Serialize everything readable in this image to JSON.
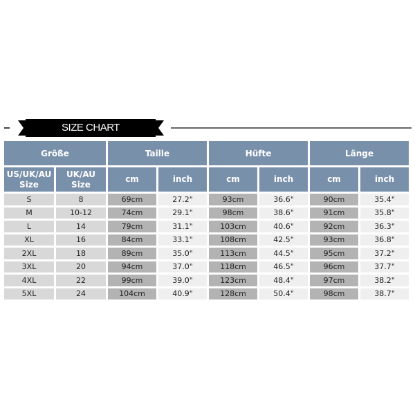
{
  "title": "SIZE CHART",
  "groups": [
    "Größe",
    "Taille",
    "Hüfte",
    "Länge"
  ],
  "subheaders": [
    "US/UK/AU Size",
    "UK/AU Size",
    "cm",
    "inch",
    "cm",
    "inch",
    "cm",
    "inch"
  ],
  "rows": [
    [
      "S",
      "8",
      "69cm",
      "27.2\"",
      "93cm",
      "36.6\"",
      "90cm",
      "35.4\""
    ],
    [
      "M",
      "10-12",
      "74cm",
      "29.1\"",
      "98cm",
      "38.6\"",
      "91cm",
      "35.8\""
    ],
    [
      "L",
      "14",
      "79cm",
      "31.1\"",
      "103cm",
      "40.6\"",
      "92cm",
      "36.3\""
    ],
    [
      "XL",
      "16",
      "84cm",
      "33.1\"",
      "108cm",
      "42.5\"",
      "93cm",
      "36.8\""
    ],
    [
      "2XL",
      "18",
      "89cm",
      "35.0\"",
      "113cm",
      "44.5\"",
      "95cm",
      "37.2\""
    ],
    [
      "3XL",
      "20",
      "94cm",
      "37.0\"",
      "118cm",
      "46.5\"",
      "96cm",
      "37.7\""
    ],
    [
      "4XL",
      "22",
      "99cm",
      "39.0\"",
      "123cm",
      "48.4\"",
      "97cm",
      "38.2\""
    ],
    [
      "5XL",
      "24",
      "104cm",
      "40.9\"",
      "128cm",
      "50.4\"",
      "98cm",
      "38.7\""
    ]
  ],
  "colors": {
    "header": "#7990ab",
    "size_cell": "#d8d8d8",
    "cm_cell": "#b3b3b3",
    "inch_cell": "#efefef"
  }
}
